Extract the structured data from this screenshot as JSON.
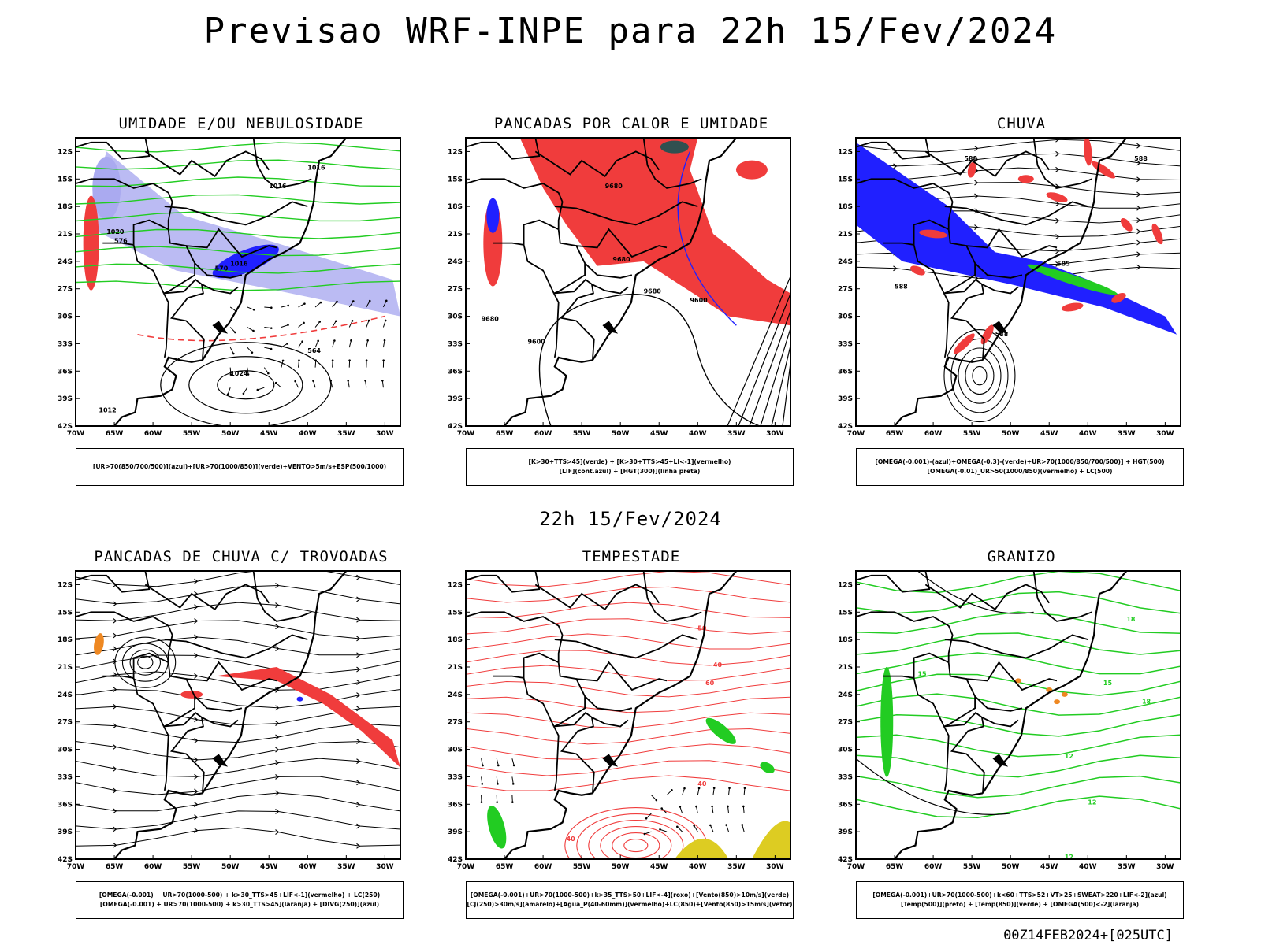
{
  "main_title": "Previsao WRF-INPE  para 22h 15/Fev/2024",
  "mid_label": "22h 15/Fev/2024",
  "footer_stamp": "00Z14FEB2024+[025UTC]",
  "lat_labels": [
    "12S",
    "15S",
    "18S",
    "21S",
    "24S",
    "27S",
    "30S",
    "33S",
    "36S",
    "39S",
    "42S"
  ],
  "lon_labels": [
    "70W",
    "65W",
    "60W",
    "55W",
    "50W",
    "45W",
    "40W",
    "35W",
    "30W"
  ],
  "panels": [
    {
      "title": "UMIDADE E/OU NEBULOSIDADE",
      "legend1": "[UR>70(850/700/500)](azul)+[UR>70(1000/850)](verde)+VENTO>5m/s+ESP(500/1000)",
      "legend2": "",
      "labels": [
        "1016",
        "1016",
        "1020",
        "1024",
        "1012",
        "576",
        "570",
        "564",
        "1016"
      ]
    },
    {
      "title": "PANCADAS POR CALOR E UMIDADE",
      "legend1": "[K>30+TTS>45](verde) + [K>30+TTS>45+LI<-1](vermelho)",
      "legend2": "[LIF](cont.azul) + [HGT(300)](linha preta)",
      "labels": [
        "9680",
        "9680",
        "9680",
        "9600",
        "9680",
        "9600"
      ]
    },
    {
      "title": "CHUVA",
      "legend1": "[OMEGA(-0.001)-(azul)+OMEGA(-0.3)-(verde)+UR>70(1000/850/700/500)] + HGT(500)",
      "legend2": "[OMEGA(-0.01)_UR>50(1000/850)(vermelho) + LC(500)",
      "labels": [
        "588",
        "588",
        "585",
        "588",
        "588"
      ]
    },
    {
      "title": "PANCADAS DE CHUVA C/ TROVOADAS",
      "legend1": "[OMEGA(-0.001) + UR>70(1000-500) + k>30_TTS>45+LIF<-1](vermelho) + LC(250)",
      "legend2": "[OMEGA(-0.001) + UR>70(1000-500) + k>30_TTS>45](laranja) + [DIVG(250)](azul)",
      "labels": []
    },
    {
      "title": "TEMPESTADE",
      "legend1": "[OMEGA(-0.001)+UR>70(1000-500)+k>35_TTS>50+LIF<-4](roxo)+[Vento(850)>10m/s](verde)",
      "legend2": "[CJ(250)>30m/s](amarelo)+[Agua_P(40-60mm)](vermelho)+LC(850)+[Vento(850)>15m/s](vetor)",
      "labels": [
        "40",
        "50",
        "60",
        "40",
        "40"
      ]
    },
    {
      "title": "GRANIZO",
      "legend1": "[OMEGA(-0.001)+UR>70(1000-500)+k<60+TTS>52+VT>25+SWEAT>220+LIF<-2](azul)",
      "legend2": "[Temp(500)](preto) + [Temp(850)](verde) + [OMEGA(500)<-2](laranja)",
      "labels": [
        "18",
        "12",
        "15",
        "12",
        "18",
        "12",
        "15"
      ]
    }
  ],
  "colors": {
    "blue": "#2020ff",
    "lightblue": "#aaaaf0",
    "green": "#22cc22",
    "red": "#f03c3c",
    "orange": "#ee8822",
    "yellow": "#ddcc22",
    "teal": "#305050"
  }
}
